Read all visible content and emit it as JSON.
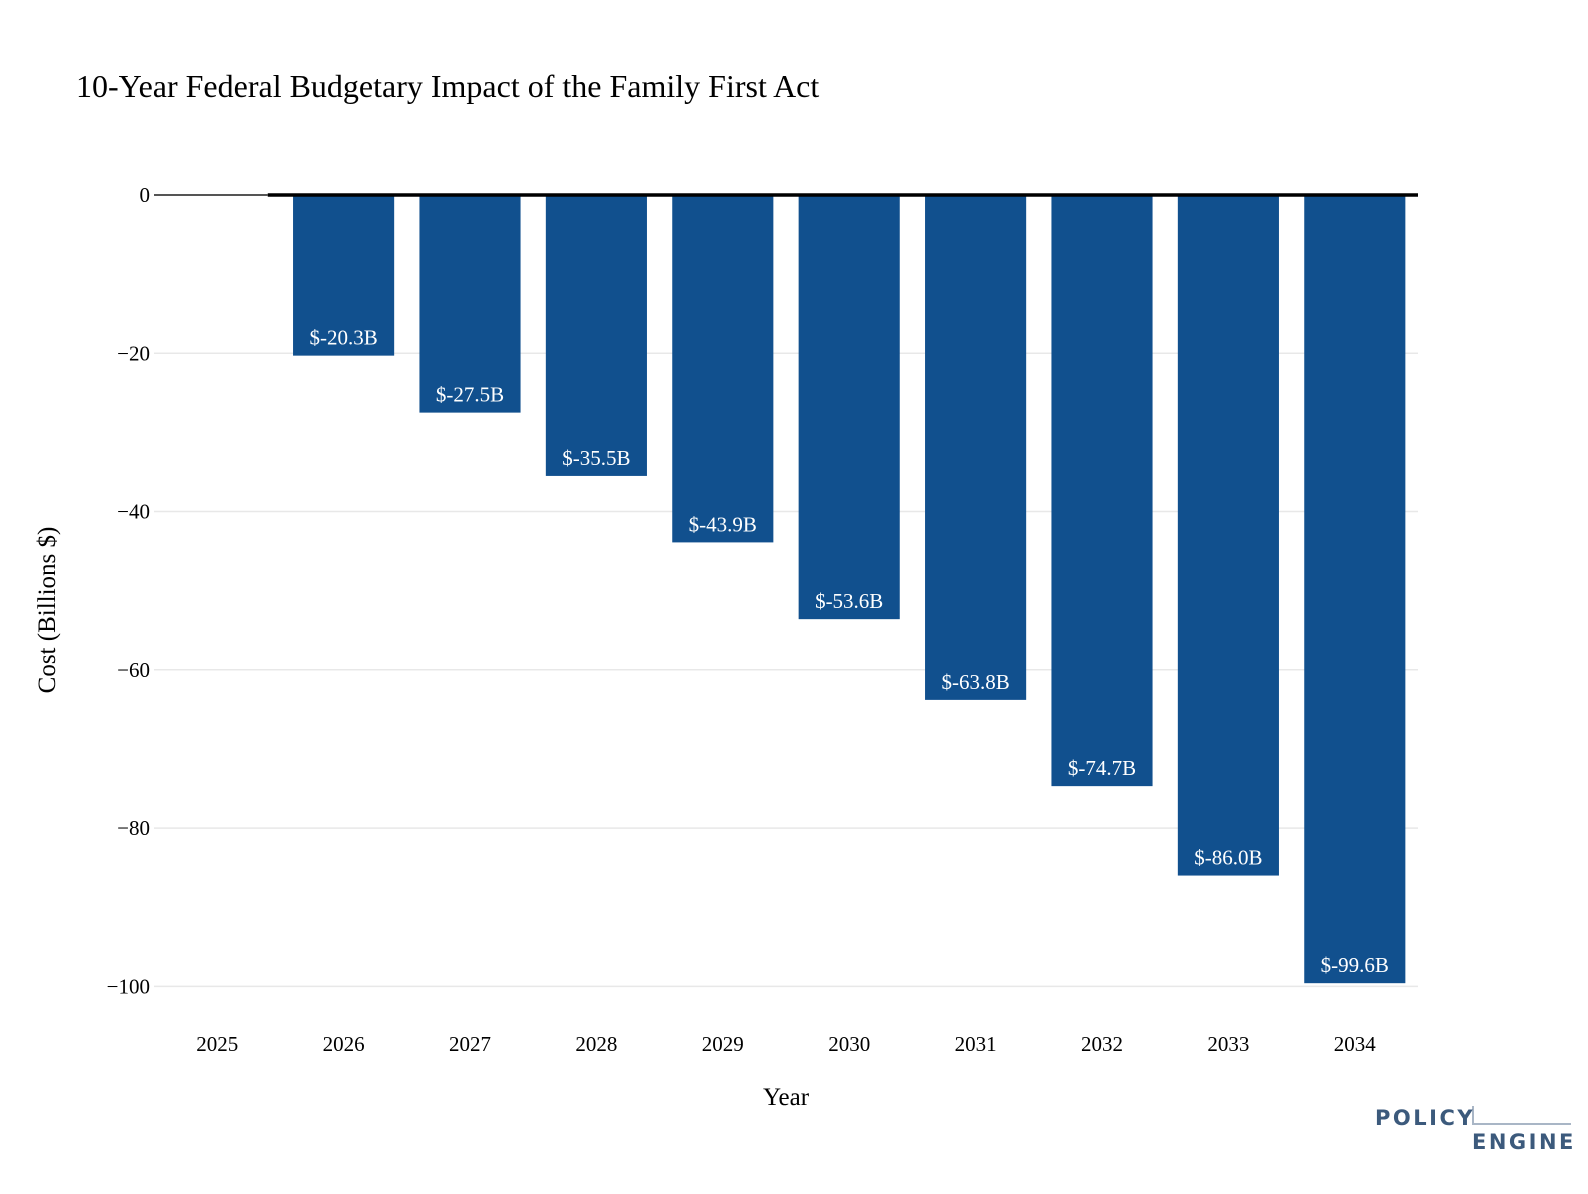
{
  "chart_data": {
    "type": "bar",
    "title": "10-Year Federal Budgetary Impact of the Family First Act",
    "xlabel": "Year",
    "ylabel": "Cost (Billions $)",
    "categories": [
      "2025",
      "2026",
      "2027",
      "2028",
      "2029",
      "2030",
      "2031",
      "2032",
      "2033",
      "2034"
    ],
    "values": [
      0,
      -20.3,
      -27.5,
      -35.5,
      -43.9,
      -53.6,
      -63.8,
      -74.7,
      -86.0,
      -99.6
    ],
    "data_labels": [
      "",
      "$-20.3B",
      "$-27.5B",
      "$-35.5B",
      "$-43.9B",
      "$-53.6B",
      "$-63.8B",
      "$-74.7B",
      "$-86.0B",
      "$-99.6B"
    ],
    "yticks": [
      0,
      -20,
      -40,
      -60,
      -80,
      -100
    ],
    "ytick_labels": [
      "0",
      "−20",
      "−40",
      "−60",
      "−80",
      "−100"
    ],
    "ylim": [
      -104,
      0
    ],
    "grid": true,
    "bar_color": "#11508e",
    "grid_color": "#e8e8e8"
  },
  "logo": {
    "line1": "POLICY",
    "line2": "ENGINE",
    "color": "#3c5a7c"
  }
}
